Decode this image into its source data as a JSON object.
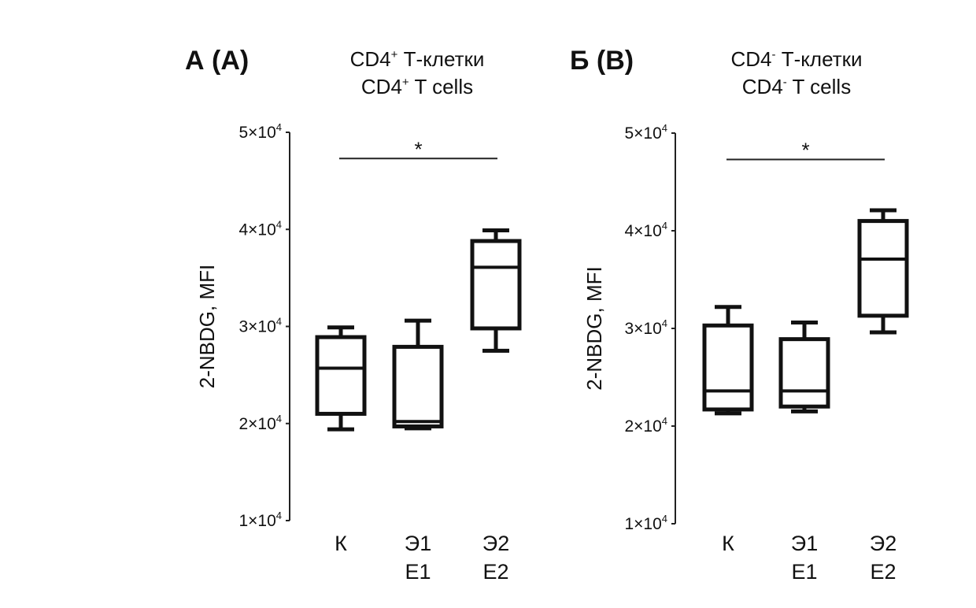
{
  "chart_data": [
    {
      "type": "box",
      "panel_label": "А (A)",
      "title_ru": "CD4",
      "title_ru_sup": "+",
      "title_ru_rest": " Т-клетки",
      "title_en": "CD4",
      "title_en_sup": "+",
      "title_en_rest": " T cells",
      "ylabel": "2-NBDG, MFI",
      "ylim": [
        10000,
        50000
      ],
      "yticks": [
        {
          "m": "1",
          "e": "4",
          "v": 10000
        },
        {
          "m": "2",
          "e": "4",
          "v": 20000
        },
        {
          "m": "3",
          "e": "4",
          "v": 30000
        },
        {
          "m": "4",
          "e": "4",
          "v": 40000
        },
        {
          "m": "5",
          "e": "4",
          "v": 50000
        }
      ],
      "categories": [
        [
          "К"
        ],
        [
          "Э1",
          "E1"
        ],
        [
          "Э2",
          "E2"
        ]
      ],
      "boxes": [
        {
          "whisker_low": 19400,
          "q1": 21000,
          "median": 25700,
          "q3": 28900,
          "whisker_high": 29900
        },
        {
          "whisker_low": 19500,
          "q1": 19700,
          "median": 20200,
          "q3": 27900,
          "whisker_high": 30600
        },
        {
          "whisker_low": 27500,
          "q1": 29800,
          "median": 36100,
          "q3": 38800,
          "whisker_high": 39900
        }
      ],
      "significance": {
        "from": 0,
        "to": 2,
        "label": "*",
        "y": 47300
      }
    },
    {
      "type": "box",
      "panel_label": "Б (B)",
      "title_ru": "CD4",
      "title_ru_sup": "-",
      "title_ru_rest": " Т-клетки",
      "title_en": "CD4",
      "title_en_sup": "-",
      "title_en_rest": " T cells",
      "ylabel": "2-NBDG, MFI",
      "ylim": [
        10000,
        50000
      ],
      "yticks": [
        {
          "m": "1",
          "e": "4",
          "v": 10000
        },
        {
          "m": "2",
          "e": "4",
          "v": 20000
        },
        {
          "m": "3",
          "e": "4",
          "v": 30000
        },
        {
          "m": "4",
          "e": "4",
          "v": 40000
        },
        {
          "m": "5",
          "e": "4",
          "v": 50000
        }
      ],
      "categories": [
        [
          "К"
        ],
        [
          "Э1",
          "E1"
        ],
        [
          "Э2",
          "E2"
        ]
      ],
      "boxes": [
        {
          "whisker_low": 21300,
          "q1": 21700,
          "median": 23600,
          "q3": 30300,
          "whisker_high": 32200
        },
        {
          "whisker_low": 21500,
          "q1": 22000,
          "median": 23600,
          "q3": 28900,
          "whisker_high": 30600
        },
        {
          "whisker_low": 29600,
          "q1": 31300,
          "median": 37100,
          "q3": 41000,
          "whisker_high": 42100
        }
      ],
      "significance": {
        "from": 0,
        "to": 2,
        "label": "*",
        "y": 47300
      }
    }
  ]
}
